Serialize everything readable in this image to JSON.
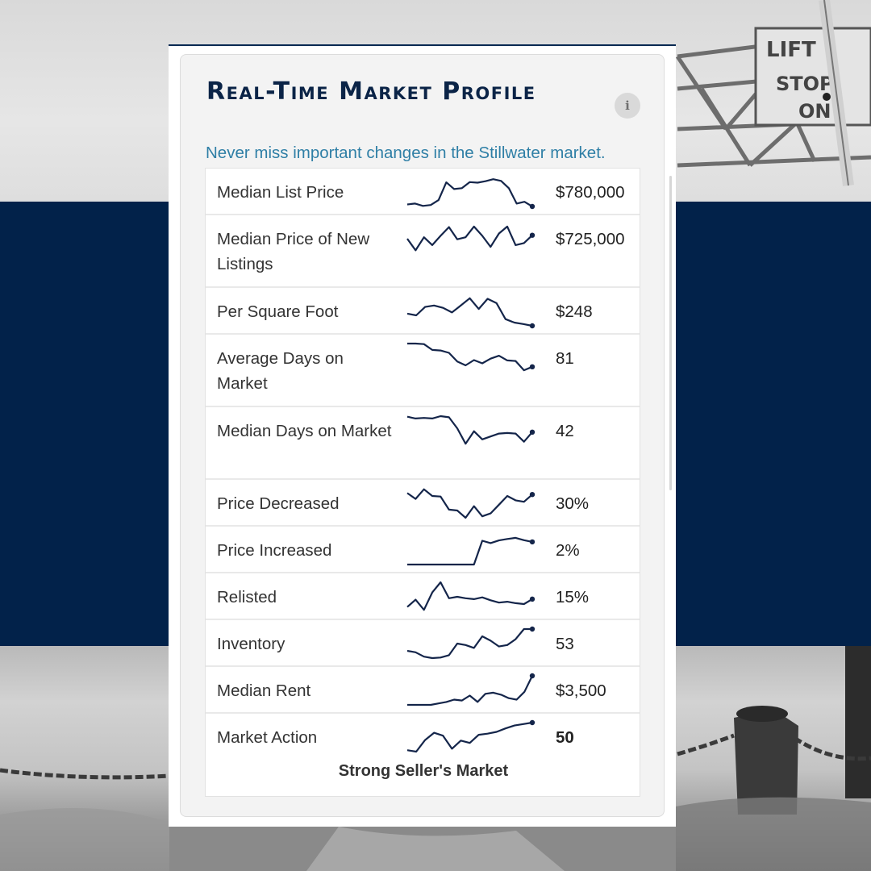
{
  "widget": {
    "title": "Real-Time Market Profile",
    "info_icon": "info-icon",
    "info_glyph": "i",
    "subtitle": "Never miss important changes in the Stillwater market.",
    "verdict": "Strong Seller's Market"
  },
  "colors": {
    "accent_navy": "#0b2447",
    "subtitle_blue": "#2f7fa6",
    "band_navy": "#02224a",
    "sparkline": "#14254a"
  },
  "metrics": [
    {
      "label": "Median List Price",
      "value": "$780,000",
      "trend": [
        0.07,
        0.1,
        0.02,
        0.05,
        0.22,
        0.83,
        0.6,
        0.63,
        0.84,
        0.82,
        0.87,
        0.94,
        0.88,
        0.63,
        0.1,
        0.16,
        0.0
      ]
    },
    {
      "label": "Median Price of New Listings",
      "value": "$725,000",
      "trend": [
        0.5,
        0.1,
        0.55,
        0.28,
        0.6,
        0.9,
        0.48,
        0.55,
        0.92,
        0.6,
        0.22,
        0.68,
        0.92,
        0.28,
        0.35,
        0.62
      ]
    },
    {
      "label": "Per Square Foot",
      "value": "$248",
      "trend": [
        0.42,
        0.36,
        0.65,
        0.7,
        0.62,
        0.46,
        0.7,
        0.95,
        0.58,
        0.93,
        0.78,
        0.23,
        0.11,
        0.06,
        0.0
      ]
    },
    {
      "label": "Average Days on Market",
      "value": "81",
      "trend": [
        1.0,
        1.0,
        0.98,
        0.78,
        0.76,
        0.68,
        0.38,
        0.25,
        0.43,
        0.32,
        0.48,
        0.58,
        0.42,
        0.4,
        0.08,
        0.2
      ]
    },
    {
      "label": "Median Days on Market",
      "value": "42",
      "trend": [
        0.98,
        0.92,
        0.94,
        0.92,
        1.0,
        0.96,
        0.58,
        0.05,
        0.48,
        0.2,
        0.3,
        0.4,
        0.42,
        0.4,
        0.12,
        0.45
      ]
    },
    {
      "label": "Price Decreased",
      "value": "30%",
      "trend": [
        0.85,
        0.65,
        0.98,
        0.75,
        0.73,
        0.28,
        0.25,
        0.0,
        0.4,
        0.05,
        0.15,
        0.45,
        0.75,
        0.6,
        0.55,
        0.8
      ]
    },
    {
      "label": "Price Increased",
      "value": "2%",
      "trend": [
        0.0,
        0.0,
        0.0,
        0.0,
        0.0,
        0.0,
        0.0,
        0.0,
        0.0,
        0.82,
        0.74,
        0.83,
        0.88,
        0.92,
        0.84,
        0.78
      ]
    },
    {
      "label": "Relisted",
      "value": "15%",
      "trend": [
        0.15,
        0.4,
        0.05,
        0.65,
        1.0,
        0.45,
        0.5,
        0.45,
        0.42,
        0.48,
        0.38,
        0.3,
        0.33,
        0.28,
        0.25,
        0.42
      ]
    },
    {
      "label": "Inventory",
      "value": "53",
      "trend": [
        0.25,
        0.2,
        0.05,
        0.0,
        0.02,
        0.1,
        0.5,
        0.45,
        0.35,
        0.75,
        0.6,
        0.4,
        0.45,
        0.65,
        1.0,
        1.0
      ]
    },
    {
      "label": "Median Rent",
      "value": "$3,500",
      "trend": [
        0.0,
        0.0,
        0.0,
        0.0,
        0.05,
        0.1,
        0.18,
        0.15,
        0.32,
        0.1,
        0.38,
        0.42,
        0.35,
        0.23,
        0.18,
        0.45,
        1.0
      ]
    },
    {
      "label": "Market Action",
      "value": "50",
      "strong": true,
      "trend": [
        0.05,
        0.0,
        0.4,
        0.65,
        0.55,
        0.1,
        0.38,
        0.3,
        0.58,
        0.62,
        0.68,
        0.8,
        0.9,
        0.95,
        1.0
      ]
    }
  ]
}
